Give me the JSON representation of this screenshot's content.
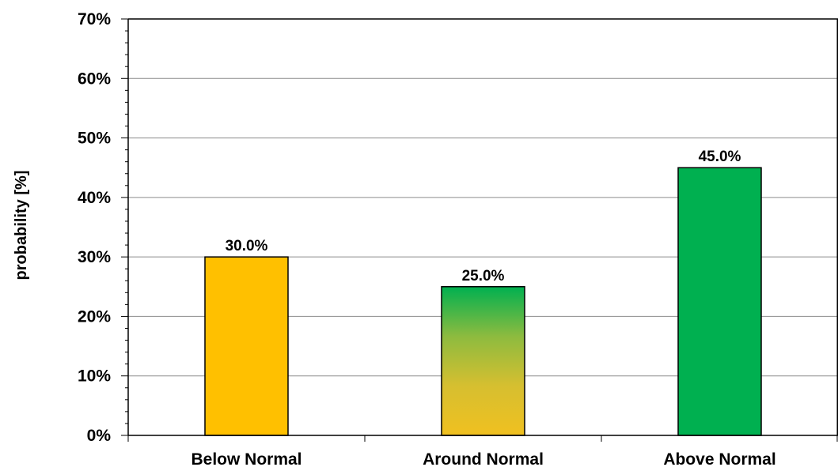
{
  "chart_data": {
    "type": "bar",
    "categories": [
      "Below Normal",
      "Around Normal",
      "Above Normal"
    ],
    "values": [
      30.0,
      25.0,
      45.0
    ],
    "data_labels": [
      "30.0%",
      "25.0%",
      "45.0%"
    ],
    "ylabel": "probability [%]",
    "xlabel": "",
    "ylim": [
      0,
      70
    ],
    "y_ticks": [
      0,
      10,
      20,
      30,
      40,
      50,
      60,
      70
    ],
    "y_tick_labels": [
      "0%",
      "10%",
      "20%",
      "30%",
      "40%",
      "50%",
      "60%",
      "70%"
    ],
    "grid": true,
    "legend": "none",
    "bar_fills": [
      {
        "type": "solid",
        "colors": [
          "#FFC000"
        ]
      },
      {
        "type": "gradient",
        "colors": [
          "#00B050",
          "#8DBB3F",
          "#D6BF30",
          "#F0C020"
        ]
      },
      {
        "type": "solid",
        "colors": [
          "#00B050"
        ]
      }
    ]
  }
}
